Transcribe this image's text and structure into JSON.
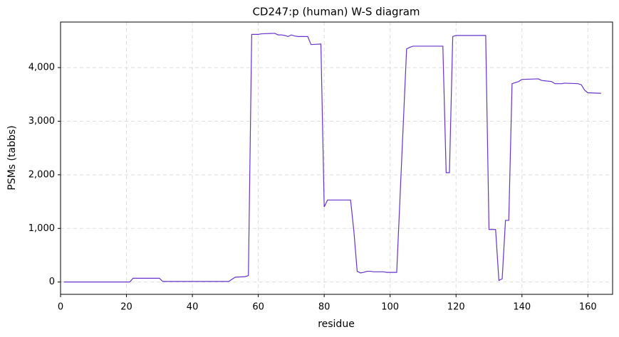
{
  "chart_data": {
    "type": "line",
    "title": "CD247:p (human) W-S diagram",
    "x_label": "residue",
    "y_label": "PSMs (tabbs)",
    "x": [
      1,
      21,
      22,
      30,
      31,
      51,
      52,
      53,
      56,
      57,
      58,
      60,
      61,
      65,
      66,
      67,
      68,
      69,
      70,
      71,
      72,
      75,
      76,
      79,
      80,
      81,
      88,
      89,
      90,
      91,
      92,
      93,
      94,
      95,
      98,
      99,
      102,
      105,
      106,
      107,
      116,
      117,
      118,
      119,
      120,
      129,
      130,
      132,
      133,
      134,
      135,
      136,
      137,
      139,
      140,
      145,
      146,
      149,
      150,
      152,
      153,
      157,
      158,
      159,
      160,
      164
    ],
    "series": [
      {
        "color": "#6633cc",
        "values": [
          0,
          0,
          70,
          70,
          10,
          10,
          50,
          90,
          100,
          120,
          4620,
          4620,
          4630,
          4640,
          4610,
          4610,
          4600,
          4580,
          4610,
          4590,
          4580,
          4580,
          4430,
          4440,
          1400,
          1530,
          1530,
          950,
          200,
          170,
          180,
          200,
          200,
          190,
          190,
          180,
          180,
          4350,
          4380,
          4400,
          4400,
          2040,
          2040,
          4580,
          4600,
          4600,
          980,
          980,
          30,
          60,
          1150,
          1150,
          3700,
          3740,
          3780,
          3790,
          3760,
          3740,
          3700,
          3700,
          3710,
          3700,
          3680,
          3580,
          3530,
          3520
        ]
      }
    ],
    "xlim": [
      0,
      167.5
    ],
    "xticks": [
      0,
      20,
      40,
      60,
      80,
      100,
      120,
      140,
      160
    ],
    "ylim": [
      -230,
      4850
    ],
    "yticks": [
      0,
      {
        "value": 1000,
        "label": "1,000"
      },
      {
        "value": 2000,
        "label": "2,000"
      },
      {
        "value": 3000,
        "label": "3,000"
      },
      {
        "value": 4000,
        "label": "4,000"
      }
    ],
    "grid": true
  }
}
